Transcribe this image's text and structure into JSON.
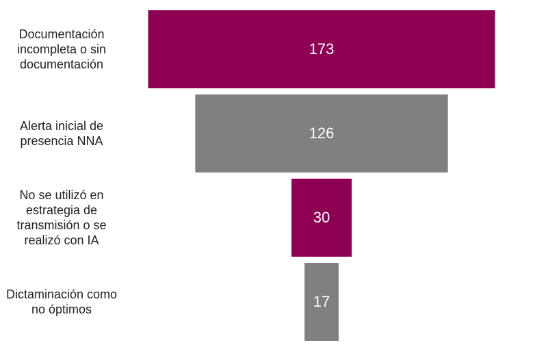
{
  "chart_data": {
    "type": "funnel",
    "categories": [
      "Documentación incompleta o sin documentación",
      "Alerta inicial de presencia NNA",
      "No se utilizó en estrategia de transmisión o se realizó con IA",
      "Dictaminación como no óptimos"
    ],
    "values": [
      173,
      126,
      30,
      17
    ],
    "colors": [
      "#8e0052",
      "#808080",
      "#8e0052",
      "#808080"
    ]
  }
}
